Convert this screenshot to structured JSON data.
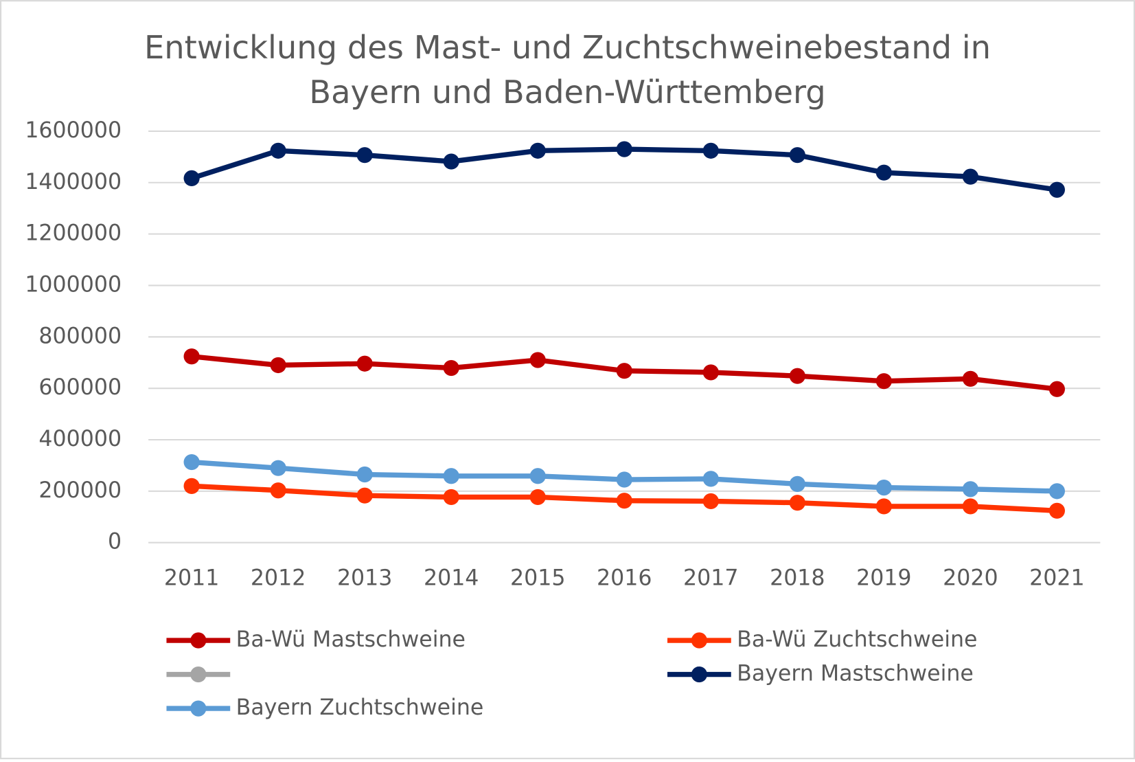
{
  "chart_data": {
    "type": "line",
    "title": "Entwicklung des Mast- und Zuchtschweinebestand in Bayern und Baden-Württemberg",
    "categories": [
      "2011",
      "2012",
      "2013",
      "2014",
      "2015",
      "2016",
      "2017",
      "2018",
      "2019",
      "2020",
      "2021"
    ],
    "series": [
      {
        "name": "Ba-Wü Mastschweine",
        "color": "#c00000",
        "values": [
          724000,
          690000,
          696000,
          679000,
          710000,
          668000,
          662000,
          648000,
          628000,
          637000,
          597000
        ]
      },
      {
        "name": "Ba-Wü Zuchtschweine",
        "color": "#ff3300",
        "values": [
          220000,
          203000,
          183000,
          177000,
          177000,
          163000,
          161000,
          155000,
          141000,
          141000,
          124000
        ]
      },
      {
        "color": "#a5a5a5",
        "values": [
          null,
          null,
          null,
          null,
          null,
          null,
          null,
          null,
          null,
          null,
          null
        ]
      },
      {
        "name": "Bayern Mastschweine",
        "color": "#002060",
        "values": [
          1417000,
          1524000,
          1507000,
          1482000,
          1524000,
          1530000,
          1524000,
          1507000,
          1439000,
          1423000,
          1372000
        ]
      },
      {
        "name": "Bayern Zuchtschweine",
        "color": "#5b9bd5",
        "values": [
          313000,
          290000,
          265000,
          259000,
          259000,
          245000,
          248000,
          228000,
          214000,
          208000,
          200000
        ]
      }
    ],
    "ylim": [
      0,
      1600000
    ],
    "yticks": [
      0,
      200000,
      400000,
      600000,
      800000,
      1000000,
      1200000,
      1400000,
      1600000
    ],
    "grid": true,
    "legend": "bottom"
  }
}
